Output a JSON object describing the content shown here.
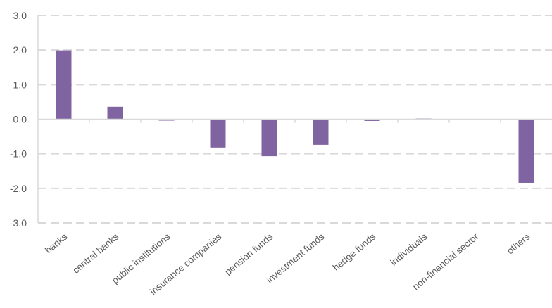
{
  "chart_data": {
    "type": "bar",
    "title": "",
    "xlabel": "",
    "ylabel": "",
    "categories": [
      "banks",
      "central banks",
      "public institutions",
      "insurance companies",
      "pension funds",
      "investment funds",
      "hedge funds",
      "individuals",
      "non-financial sector",
      "others"
    ],
    "values": [
      1.99,
      0.36,
      -0.03,
      -0.82,
      -1.07,
      -0.74,
      -0.05,
      0.02,
      0.0,
      -1.84
    ],
    "ylim": [
      -3.0,
      3.0
    ],
    "yticks": [
      "3.0",
      "2.0",
      "1.0",
      "0.0",
      "-1.0",
      "-2.0",
      "-3.0"
    ],
    "ytick_values": [
      3,
      2,
      1,
      0,
      -1,
      -2,
      -3
    ],
    "grid": true,
    "legend": "none",
    "bar_color": "#8064A2",
    "grid_color": "#D9D9D9",
    "axis_color": "#D9D9D9",
    "text_color": "#595959"
  }
}
